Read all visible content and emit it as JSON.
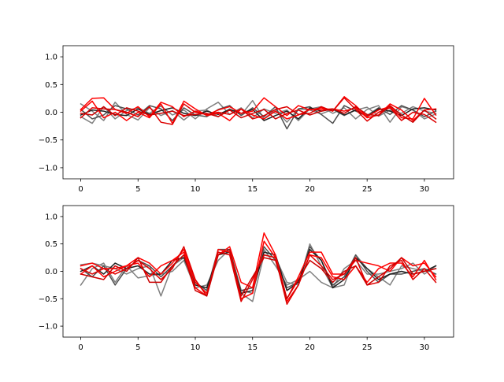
{
  "chart_data": [
    {
      "type": "line",
      "title": "",
      "xlabel": "",
      "ylabel": "",
      "xlim": [
        -1.55,
        32.55
      ],
      "ylim": [
        -1.2,
        1.2
      ],
      "xticks": [
        "0",
        "5",
        "10",
        "15",
        "20",
        "25",
        "30"
      ],
      "yticks": [
        "1.0",
        "0.5",
        "0.0",
        "−0.5",
        "−1.0"
      ],
      "grid": false,
      "x": [
        0,
        1,
        2,
        3,
        4,
        5,
        6,
        7,
        8,
        9,
        10,
        11,
        12,
        13,
        14,
        15,
        16,
        17,
        18,
        19,
        20,
        21,
        22,
        23,
        24,
        25,
        26,
        27,
        28,
        29,
        30,
        31
      ],
      "series": [
        {
          "color": "#808080",
          "values": [
            0.15,
            0.02,
            -0.15,
            0.18,
            -0.04,
            -0.14,
            0.08,
            -0.06,
            0.03,
            -0.14,
            0.02,
            0.04,
            -0.08,
            0.06,
            -0.05,
            0.21,
            -0.12,
            0.05,
            -0.18,
            0.06,
            0.04,
            -0.03,
            0.05,
            -0.06,
            0.04,
            0.09,
            -0.07,
            0.04,
            -0.02,
            0.1,
            0.02,
            -0.02
          ]
        },
        {
          "color": "#808080",
          "values": [
            -0.08,
            -0.2,
            0.1,
            -0.12,
            0.03,
            0.08,
            -0.02,
            0.11,
            -0.05,
            0.04,
            -0.12,
            0.06,
            0.18,
            -0.04,
            0.08,
            -0.1,
            0.06,
            -0.02,
            0.04,
            -0.15,
            0.06,
            0.1,
            -0.02,
            0.08,
            -0.12,
            0.05,
            0.12,
            -0.18,
            0.1,
            0.04,
            -0.12,
            -0.03
          ]
        },
        {
          "color": "#505050",
          "values": [
            0.05,
            -0.12,
            -0.05,
            0.12,
            0.06,
            -0.05,
            0.12,
            0.06,
            -0.15,
            0.08,
            -0.05,
            -0.08,
            0.05,
            0.12,
            -0.06,
            0.08,
            -0.08,
            0.1,
            -0.3,
            0.06,
            0.1,
            -0.04,
            -0.2,
            0.12,
            0.02,
            -0.06,
            0.08,
            -0.04,
            0.12,
            0.04,
            -0.08,
            0.02
          ]
        },
        {
          "color": "#202020",
          "values": [
            -0.05,
            0.04,
            0.02,
            -0.04,
            -0.06,
            0.06,
            -0.04,
            0.03,
            0.08,
            -0.02,
            -0.06,
            0.02,
            -0.04,
            0.05,
            -0.02,
            0.05,
            -0.15,
            -0.06,
            0.02,
            -0.12,
            0.08,
            0.02,
            0.06,
            -0.05,
            0.04,
            -0.08,
            0.06,
            0.02,
            -0.06,
            0.06,
            0.08,
            0.04
          ]
        },
        {
          "color": "#ff0000",
          "values": [
            0.05,
            0.25,
            0.26,
            0.05,
            -0.02,
            0.1,
            -0.08,
            0.18,
            0.1,
            -0.08,
            0.02,
            -0.05,
            0.04,
            0.1,
            -0.02,
            0.02,
            0.26,
            0.1,
            -0.06,
            0.12,
            0.04,
            0.08,
            0.02,
            0.28,
            0.12,
            -0.08,
            0.04,
            0.1,
            -0.1,
            -0.12,
            0.25,
            -0.05
          ]
        },
        {
          "color": "#ff0000",
          "values": [
            0.02,
            0.2,
            -0.1,
            0.0,
            -0.15,
            0.0,
            -0.1,
            0.15,
            -0.2,
            0.2,
            0.06,
            -0.06,
            -0.02,
            -0.15,
            0.06,
            -0.05,
            -0.12,
            0.02,
            -0.12,
            -0.05,
            0.05,
            0.05,
            0.06,
            0.02,
            0.08,
            -0.1,
            -0.05,
            0.15,
            0.04,
            -0.15,
            0.04,
            0.06
          ]
        },
        {
          "color": "#dd0000",
          "values": [
            -0.1,
            0.08,
            0.06,
            0.05,
            0.0,
            -0.08,
            0.1,
            -0.18,
            -0.22,
            0.15,
            0.0,
            -0.04,
            0.0,
            -0.04,
            0.06,
            -0.12,
            -0.06,
            0.05,
            0.1,
            -0.04,
            -0.02,
            0.1,
            0.02,
            0.26,
            0.05,
            -0.16,
            0.0,
            0.08,
            -0.15,
            0.0,
            -0.04,
            -0.18
          ]
        },
        {
          "color": "#cc0000",
          "values": [
            -0.02,
            -0.05,
            0.1,
            -0.06,
            0.08,
            0.02,
            -0.05,
            -0.02,
            0.02,
            -0.06,
            -0.04,
            -0.02,
            -0.08,
            0.04,
            -0.1,
            -0.02,
            0.05,
            -0.12,
            -0.02,
            0.04,
            -0.05,
            0.02,
            0.06,
            -0.02,
            0.1,
            -0.04,
            -0.06,
            0.12,
            -0.05,
            -0.18,
            0.04,
            -0.12
          ]
        }
      ]
    },
    {
      "type": "line",
      "title": "",
      "xlabel": "",
      "ylabel": "",
      "xlim": [
        -1.55,
        32.55
      ],
      "ylim": [
        -1.2,
        1.2
      ],
      "xticks": [
        "0",
        "5",
        "10",
        "15",
        "20",
        "25",
        "30"
      ],
      "yticks": [
        "1.0",
        "0.5",
        "0.0",
        "−0.5",
        "−1.0"
      ],
      "grid": false,
      "x": [
        0,
        1,
        2,
        3,
        4,
        5,
        6,
        7,
        8,
        9,
        10,
        11,
        12,
        13,
        14,
        15,
        16,
        17,
        18,
        19,
        20,
        21,
        22,
        23,
        24,
        25,
        26,
        27,
        28,
        29,
        30,
        31
      ],
      "series": [
        {
          "color": "#808080",
          "values": [
            0.12,
            0.15,
            0.1,
            0.05,
            -0.05,
            0.05,
            0.1,
            -0.45,
            0.1,
            0.25,
            -0.2,
            -0.4,
            0.4,
            0.35,
            -0.4,
            -0.55,
            0.3,
            0.25,
            -0.2,
            -0.25,
            0.5,
            0.1,
            -0.3,
            -0.25,
            0.3,
            0.05,
            -0.1,
            -0.25,
            0.1,
            0.05,
            0.0,
            0.05
          ]
        },
        {
          "color": "#808080",
          "values": [
            -0.25,
            0.05,
            0.15,
            -0.2,
            0.1,
            -0.12,
            -0.08,
            -0.05,
            0.0,
            0.2,
            -0.3,
            -0.25,
            0.2,
            0.4,
            -0.35,
            -0.4,
            0.4,
            0.1,
            -0.25,
            -0.15,
            0.0,
            -0.2,
            -0.3,
            0.05,
            0.2,
            -0.05,
            -0.05,
            0.0,
            0.05,
            0.15,
            -0.05,
            0.1
          ]
        },
        {
          "color": "#505050",
          "values": [
            0.05,
            -0.1,
            0.1,
            -0.25,
            0.05,
            0.2,
            0.1,
            -0.1,
            0.1,
            0.3,
            -0.2,
            -0.35,
            0.4,
            0.4,
            -0.35,
            -0.3,
            0.45,
            0.2,
            -0.3,
            -0.2,
            0.45,
            0.2,
            -0.25,
            -0.1,
            0.3,
            0.0,
            -0.2,
            -0.05,
            -0.05,
            0.0,
            0.05,
            -0.05
          ]
        },
        {
          "color": "#202020",
          "values": [
            0.0,
            0.1,
            -0.05,
            0.15,
            0.05,
            0.1,
            -0.05,
            -0.05,
            0.2,
            0.25,
            -0.25,
            -0.3,
            0.3,
            0.35,
            -0.4,
            -0.35,
            0.35,
            0.3,
            -0.35,
            -0.2,
            0.4,
            0.2,
            -0.3,
            -0.15,
            0.25,
            0.05,
            -0.15,
            -0.05,
            0.0,
            -0.05,
            0.0,
            0.1
          ]
        },
        {
          "color": "#ff0000",
          "values": [
            0.1,
            0.15,
            0.05,
            0.05,
            0.1,
            0.25,
            0.15,
            -0.05,
            0.15,
            0.4,
            -0.2,
            -0.4,
            0.3,
            0.45,
            -0.2,
            -0.3,
            0.7,
            0.3,
            -0.5,
            -0.1,
            0.35,
            0.35,
            -0.05,
            -0.05,
            0.2,
            0.15,
            0.1,
            0.0,
            0.25,
            0.1,
            0.15,
            -0.1
          ]
        },
        {
          "color": "#ff0000",
          "values": [
            -0.05,
            0.1,
            -0.1,
            0.0,
            0.1,
            0.15,
            -0.1,
            0.1,
            0.2,
            0.35,
            -0.3,
            -0.45,
            0.4,
            0.35,
            -0.5,
            -0.4,
            0.55,
            0.25,
            -0.55,
            -0.25,
            0.3,
            0.25,
            -0.1,
            -0.15,
            0.1,
            -0.2,
            0.05,
            0.15,
            0.15,
            -0.1,
            0.2,
            -0.15
          ]
        },
        {
          "color": "#dd0000",
          "values": [
            0.05,
            -0.05,
            0.05,
            -0.05,
            0.05,
            0.2,
            0.05,
            -0.15,
            0.05,
            0.45,
            -0.15,
            -0.45,
            0.35,
            0.3,
            -0.55,
            -0.15,
            0.3,
            0.25,
            -0.6,
            -0.25,
            0.3,
            0.1,
            -0.15,
            -0.05,
            0.25,
            -0.25,
            -0.2,
            0.1,
            0.2,
            -0.15,
            0.05,
            -0.2
          ]
        },
        {
          "color": "#cc0000",
          "values": [
            -0.05,
            -0.1,
            -0.15,
            0.1,
            0.0,
            0.25,
            -0.2,
            -0.2,
            0.1,
            0.3,
            -0.35,
            -0.45,
            0.3,
            0.4,
            -0.45,
            -0.1,
            0.25,
            0.2,
            -0.5,
            -0.15,
            0.2,
            0.05,
            -0.2,
            0.0,
            0.1,
            -0.25,
            -0.1,
            0.05,
            0.25,
            -0.05,
            0.0,
            0.05
          ]
        }
      ]
    }
  ]
}
